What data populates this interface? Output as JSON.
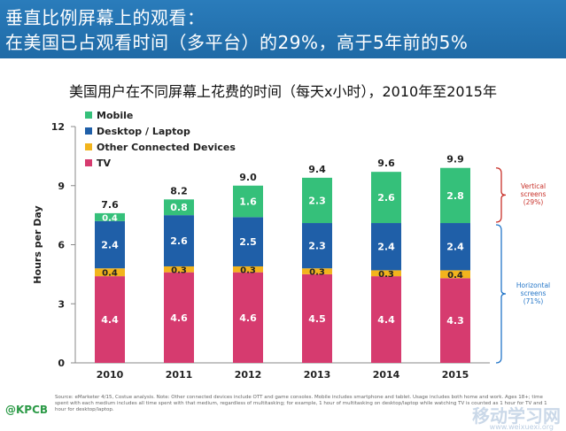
{
  "header": {
    "line1": "垂直比例屏幕上的观看：",
    "line2": "在美国已占观看时间（多平台）的29%，高于5年前的5%"
  },
  "subtitle": "美国用户在不同屏幕上花费的时间（每天x小时），2010年至2015年",
  "chart_data": {
    "type": "bar",
    "stacked": true,
    "categories": [
      "2010",
      "2011",
      "2012",
      "2013",
      "2014",
      "2015"
    ],
    "series": [
      {
        "name": "TV",
        "color": "#d63b6f",
        "values": [
          4.4,
          4.6,
          4.6,
          4.5,
          4.4,
          4.3
        ]
      },
      {
        "name": "Other Connected Devices",
        "color": "#f2b41d",
        "values": [
          0.4,
          0.3,
          0.3,
          0.3,
          0.3,
          0.4
        ]
      },
      {
        "name": "Desktop / Laptop",
        "color": "#1f5fa8",
        "values": [
          2.4,
          2.6,
          2.5,
          2.3,
          2.4,
          2.4
        ]
      },
      {
        "name": "Mobile",
        "color": "#35c07a",
        "values": [
          0.4,
          0.8,
          1.6,
          2.3,
          2.6,
          2.8
        ]
      }
    ],
    "totals": [
      "7.6",
      "8.2",
      "9.0",
      "9.4",
      "9.6",
      "9.9"
    ],
    "ylabel": "Hours per Day",
    "ylim": [
      0,
      12
    ],
    "yticks": [
      "0",
      "3",
      "6",
      "9",
      "12"
    ],
    "legend_order": [
      "Mobile",
      "Desktop / Laptop",
      "Other Connected Devices",
      "TV"
    ],
    "legend_position": "top-left"
  },
  "brackets": {
    "vertical": {
      "line1": "Vertical",
      "line2": "screens",
      "line3": "(29%)",
      "color": "#c8312a"
    },
    "horizontal": {
      "line1": "Horizontal",
      "line2": "screens",
      "line3": "(71%)",
      "color": "#2476c8"
    }
  },
  "footer": {
    "brand": "@KPCB",
    "source": "Source: eMarketer 4/15, Costue analysis. Note: Other connected devices include OTT and game consoles. Mobile includes smartphone and tablet. Usage includes both home and work. Ages 18+; time spent with each medium includes all time spent with that medium, regardless of multitasking; for example, 1 hour of multitasking on desktop/laptop while watching TV is counted as 1 hour for TV and 1 hour for desktop/laptop.",
    "watermark": "移动学习网",
    "watermark_url": "www.weixuexi.org"
  }
}
